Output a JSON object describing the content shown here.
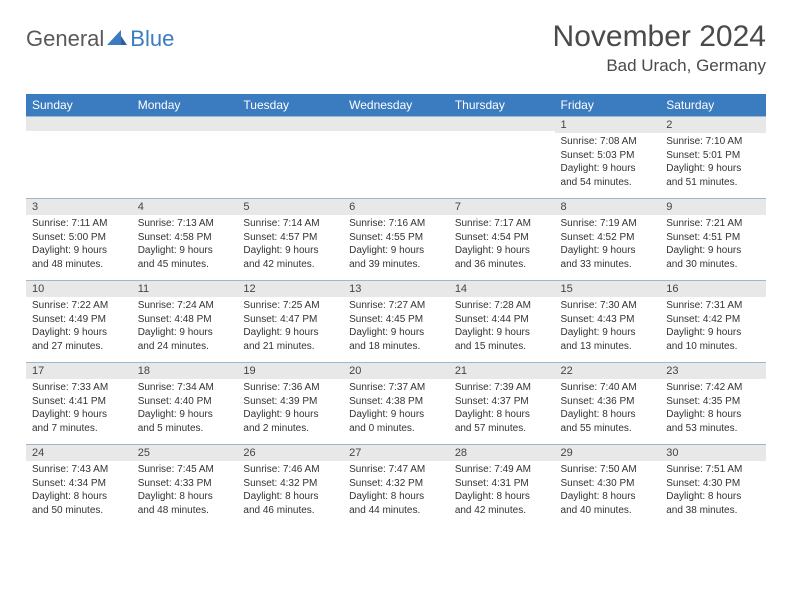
{
  "logo": {
    "word1": "General",
    "word2": "Blue"
  },
  "title": {
    "month": "November 2024",
    "location": "Bad Urach, Germany"
  },
  "colors": {
    "header_bg": "#3b7bbf",
    "header_text": "#ffffff",
    "daynum_bg": "#e8e8e8",
    "border_top": "#9bb8d3",
    "body_text": "#333333",
    "title_text": "#4a4a4a",
    "logo_gray": "#595959",
    "logo_blue": "#3b7bbf"
  },
  "day_labels": [
    "Sunday",
    "Monday",
    "Tuesday",
    "Wednesday",
    "Thursday",
    "Friday",
    "Saturday"
  ],
  "weeks": [
    [
      null,
      null,
      null,
      null,
      null,
      {
        "n": "1",
        "sr": "7:08 AM",
        "ss": "5:03 PM",
        "dl": "9 hours and 54 minutes."
      },
      {
        "n": "2",
        "sr": "7:10 AM",
        "ss": "5:01 PM",
        "dl": "9 hours and 51 minutes."
      }
    ],
    [
      {
        "n": "3",
        "sr": "7:11 AM",
        "ss": "5:00 PM",
        "dl": "9 hours and 48 minutes."
      },
      {
        "n": "4",
        "sr": "7:13 AM",
        "ss": "4:58 PM",
        "dl": "9 hours and 45 minutes."
      },
      {
        "n": "5",
        "sr": "7:14 AM",
        "ss": "4:57 PM",
        "dl": "9 hours and 42 minutes."
      },
      {
        "n": "6",
        "sr": "7:16 AM",
        "ss": "4:55 PM",
        "dl": "9 hours and 39 minutes."
      },
      {
        "n": "7",
        "sr": "7:17 AM",
        "ss": "4:54 PM",
        "dl": "9 hours and 36 minutes."
      },
      {
        "n": "8",
        "sr": "7:19 AM",
        "ss": "4:52 PM",
        "dl": "9 hours and 33 minutes."
      },
      {
        "n": "9",
        "sr": "7:21 AM",
        "ss": "4:51 PM",
        "dl": "9 hours and 30 minutes."
      }
    ],
    [
      {
        "n": "10",
        "sr": "7:22 AM",
        "ss": "4:49 PM",
        "dl": "9 hours and 27 minutes."
      },
      {
        "n": "11",
        "sr": "7:24 AM",
        "ss": "4:48 PM",
        "dl": "9 hours and 24 minutes."
      },
      {
        "n": "12",
        "sr": "7:25 AM",
        "ss": "4:47 PM",
        "dl": "9 hours and 21 minutes."
      },
      {
        "n": "13",
        "sr": "7:27 AM",
        "ss": "4:45 PM",
        "dl": "9 hours and 18 minutes."
      },
      {
        "n": "14",
        "sr": "7:28 AM",
        "ss": "4:44 PM",
        "dl": "9 hours and 15 minutes."
      },
      {
        "n": "15",
        "sr": "7:30 AM",
        "ss": "4:43 PM",
        "dl": "9 hours and 13 minutes."
      },
      {
        "n": "16",
        "sr": "7:31 AM",
        "ss": "4:42 PM",
        "dl": "9 hours and 10 minutes."
      }
    ],
    [
      {
        "n": "17",
        "sr": "7:33 AM",
        "ss": "4:41 PM",
        "dl": "9 hours and 7 minutes."
      },
      {
        "n": "18",
        "sr": "7:34 AM",
        "ss": "4:40 PM",
        "dl": "9 hours and 5 minutes."
      },
      {
        "n": "19",
        "sr": "7:36 AM",
        "ss": "4:39 PM",
        "dl": "9 hours and 2 minutes."
      },
      {
        "n": "20",
        "sr": "7:37 AM",
        "ss": "4:38 PM",
        "dl": "9 hours and 0 minutes."
      },
      {
        "n": "21",
        "sr": "7:39 AM",
        "ss": "4:37 PM",
        "dl": "8 hours and 57 minutes."
      },
      {
        "n": "22",
        "sr": "7:40 AM",
        "ss": "4:36 PM",
        "dl": "8 hours and 55 minutes."
      },
      {
        "n": "23",
        "sr": "7:42 AM",
        "ss": "4:35 PM",
        "dl": "8 hours and 53 minutes."
      }
    ],
    [
      {
        "n": "24",
        "sr": "7:43 AM",
        "ss": "4:34 PM",
        "dl": "8 hours and 50 minutes."
      },
      {
        "n": "25",
        "sr": "7:45 AM",
        "ss": "4:33 PM",
        "dl": "8 hours and 48 minutes."
      },
      {
        "n": "26",
        "sr": "7:46 AM",
        "ss": "4:32 PM",
        "dl": "8 hours and 46 minutes."
      },
      {
        "n": "27",
        "sr": "7:47 AM",
        "ss": "4:32 PM",
        "dl": "8 hours and 44 minutes."
      },
      {
        "n": "28",
        "sr": "7:49 AM",
        "ss": "4:31 PM",
        "dl": "8 hours and 42 minutes."
      },
      {
        "n": "29",
        "sr": "7:50 AM",
        "ss": "4:30 PM",
        "dl": "8 hours and 40 minutes."
      },
      {
        "n": "30",
        "sr": "7:51 AM",
        "ss": "4:30 PM",
        "dl": "8 hours and 38 minutes."
      }
    ]
  ],
  "labels": {
    "sunrise": "Sunrise:",
    "sunset": "Sunset:",
    "daylight": "Daylight:"
  }
}
